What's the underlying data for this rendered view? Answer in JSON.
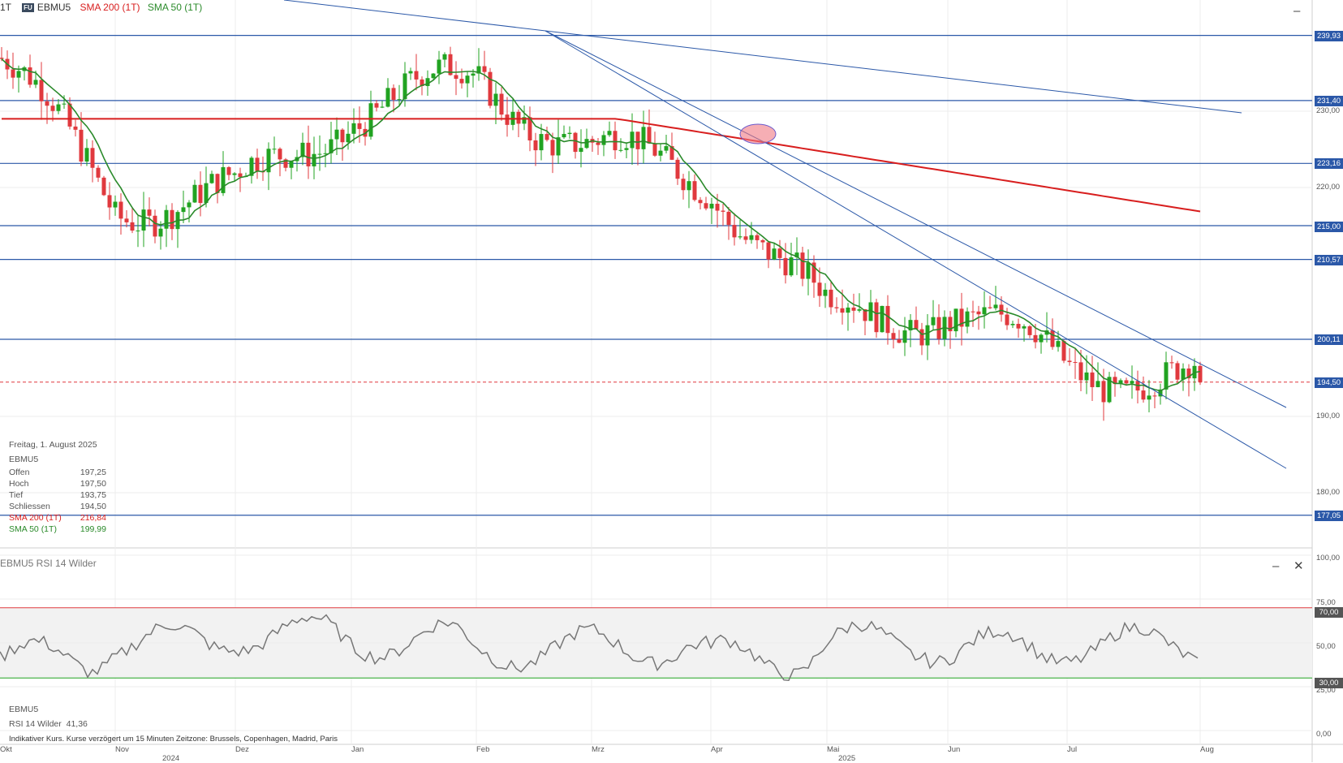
{
  "header": {
    "interval": "1T",
    "badge": "FU",
    "symbol": "EBMU5",
    "sma200": "SMA 200 (1T)",
    "sma50": "SMA 50 (1T)"
  },
  "colors": {
    "up": "#21a321",
    "down": "#e0393e",
    "sma200": "#d81e1e",
    "sma50": "#2a8a2a",
    "line": "#2b58a8",
    "rsi": "#777777"
  },
  "info_panel": {
    "date": "Freitag, 1. August 2025",
    "symbol": "EBMU5",
    "rows": [
      {
        "label": "Offen",
        "value": "197,25"
      },
      {
        "label": "Hoch",
        "value": "197,50"
      },
      {
        "label": "Tief",
        "value": "193,75"
      },
      {
        "label": "Schliessen",
        "value": "194,50"
      },
      {
        "label": "SMA 200 (1T)",
        "value": "216,84"
      },
      {
        "label": "SMA 50 (1T)",
        "value": "199,99"
      }
    ]
  },
  "price_axis": [
    "230,00",
    "220,00",
    "190,00",
    "180,00"
  ],
  "level_tags": [
    "239,93",
    "231,40",
    "223,16",
    "215,00",
    "210,57",
    "200,11",
    "194,50",
    "177,05"
  ],
  "rsi_panel": {
    "title": "EBMU5  RSI 14 Wilder",
    "axis": [
      "100,00",
      "75,00",
      "50,00",
      "25,00",
      "0,00"
    ],
    "upper_tag": "70,00",
    "lower_tag": "30,00",
    "info_symbol": "EBMU5",
    "info_label": "RSI 14 Wilder",
    "info_value": "41,36"
  },
  "x_axis": {
    "months": [
      "Okt",
      "Nov",
      "Dez",
      "Jan",
      "Feb",
      "Mrz",
      "Apr",
      "Mai",
      "Jun",
      "Jul",
      "Aug"
    ],
    "years": [
      "2024",
      "2025"
    ]
  },
  "footer": "Indikativer Kurs. Kurse verzögert um 15 Minuten   Zeitzone: Brussels, Copenhagen, Madrid, Paris",
  "chart_data": {
    "type": "candlestick",
    "symbol": "EBMU5",
    "y_axis_ticks": [
      180,
      190,
      220,
      230
    ],
    "horizontal_levels": [
      239.93,
      231.4,
      223.16,
      215.0,
      210.57,
      200.11,
      177.05
    ],
    "last_close": 194.5,
    "close_points": [
      {
        "x": "Okt",
        "y": 237
      },
      {
        "x": "Nov",
        "y": 218
      },
      {
        "x": "Dez",
        "y": 219
      },
      {
        "x": "Jan",
        "y": 230
      },
      {
        "x": "Feb",
        "y": 234
      },
      {
        "x": "Mrz",
        "y": 225
      },
      {
        "x": "Apr",
        "y": 221
      },
      {
        "x": "Mai",
        "y": 203
      },
      {
        "x": "Jun",
        "y": 204
      },
      {
        "x": "Jul",
        "y": 197
      },
      {
        "x": "Aug",
        "y": 194.5
      }
    ],
    "rsi": {
      "period": 14,
      "last": 41.36,
      "upper": 70,
      "lower": 30
    }
  }
}
